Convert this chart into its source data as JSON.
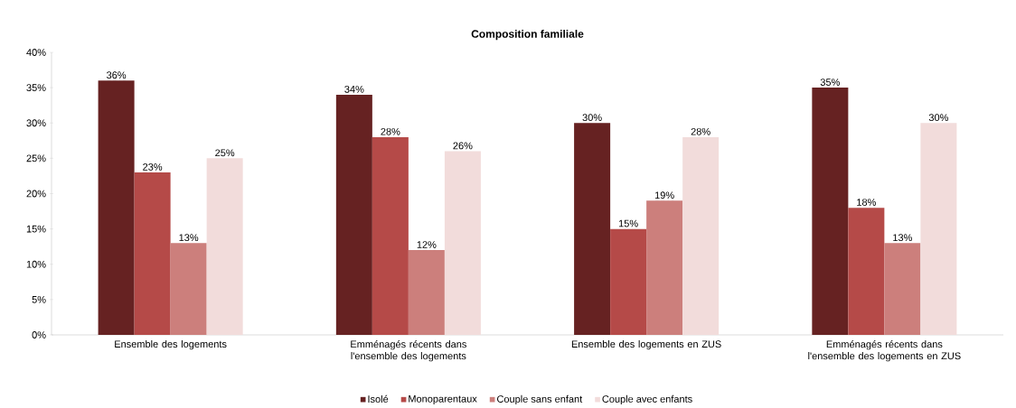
{
  "chart_data": {
    "type": "bar",
    "title": "Composition familiale",
    "categories": [
      "Ensemble des logements",
      "Emménagés récents dans l'ensemble des logements",
      "Ensemble des logements en ZUS",
      "Emménagés récents dans l'ensemble des logements en ZUS"
    ],
    "series": [
      {
        "name": "Isolé",
        "color": "#662222",
        "values": [
          36,
          34,
          30,
          35
        ],
        "value_labels": [
          "36%",
          "34%",
          "30%",
          "35%"
        ]
      },
      {
        "name": "Monoparentaux",
        "color": "#b54a48",
        "values": [
          23,
          28,
          15,
          18
        ],
        "value_labels": [
          "23%",
          "28%",
          "15%",
          "18%"
        ]
      },
      {
        "name": "Couple sans enfant",
        "color": "#cc7f7c",
        "values": [
          13,
          12,
          19,
          13
        ],
        "value_labels": [
          "13%",
          "12%",
          "19%",
          "13%"
        ]
      },
      {
        "name": "Couple avec enfants",
        "color": "#f2dcdb",
        "values": [
          25,
          26,
          28,
          30
        ],
        "value_labels": [
          "25%",
          "26%",
          "28%",
          "30%"
        ]
      }
    ],
    "ylim": [
      0,
      40
    ],
    "yticks": [
      {
        "value": 0,
        "label": "0%"
      },
      {
        "value": 5,
        "label": "5%"
      },
      {
        "value": 10,
        "label": "10%"
      },
      {
        "value": 15,
        "label": "15%"
      },
      {
        "value": 20,
        "label": "20%"
      },
      {
        "value": 25,
        "label": "25%"
      },
      {
        "value": 30,
        "label": "30%"
      },
      {
        "value": 35,
        "label": "35%"
      },
      {
        "value": 40,
        "label": "40%"
      }
    ],
    "grid": false,
    "legend": "bottom"
  }
}
